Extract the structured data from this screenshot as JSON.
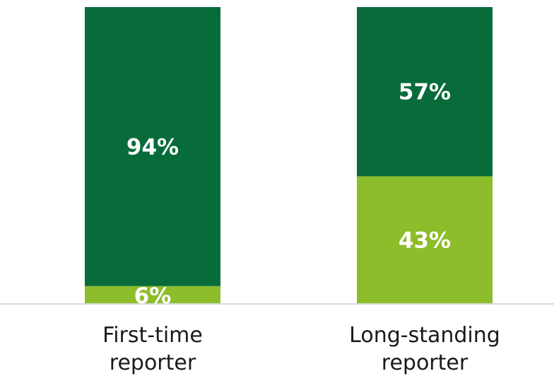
{
  "chart_data": {
    "type": "bar",
    "stacked": true,
    "categories": [
      [
        "First-time",
        "reporter"
      ],
      [
        "Long-standing",
        "reporter"
      ]
    ],
    "series": [
      {
        "values": [
          6,
          43
        ],
        "labels": [
          "6%",
          "43%"
        ],
        "color": "#8dbd2a"
      },
      {
        "values": [
          94,
          57
        ],
        "labels": [
          "94%",
          "57%"
        ],
        "color": "#076b3a"
      }
    ],
    "ylim": [
      0,
      100
    ],
    "grid": false,
    "legend": "none",
    "baseline_color": "#d9d9d9"
  }
}
